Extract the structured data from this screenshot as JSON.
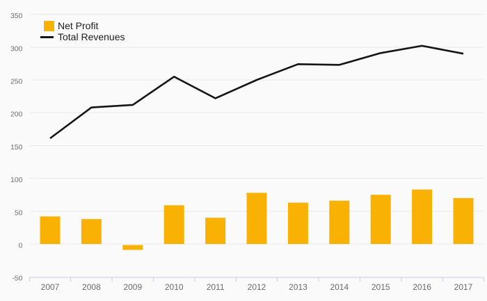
{
  "chart": {
    "background": "#FAFAFA",
    "legend": {
      "items": [
        {
          "label": "Net Profit",
          "symbol": "square",
          "color": "#F9B104"
        },
        {
          "label": "Total Revenues",
          "symbol": "line",
          "color": "#141414"
        }
      ]
    }
  },
  "chart_data": {
    "type": "combo",
    "title": "",
    "categories": [
      "2007",
      "2008",
      "2009",
      "2010",
      "2011",
      "2012",
      "2013",
      "2014",
      "2015",
      "2016",
      "2017"
    ],
    "series": [
      {
        "name": "Net Profit",
        "type": "bar",
        "color": "#F9B104",
        "values": [
          42,
          38,
          -9,
          59,
          40,
          78,
          63,
          66,
          75,
          83,
          70
        ]
      },
      {
        "name": "Total Revenues",
        "type": "line",
        "color": "#141414",
        "values": [
          161,
          208,
          212,
          255,
          222,
          250,
          274,
          273,
          291,
          302,
          290
        ]
      }
    ],
    "xlabel": "",
    "ylabel": "",
    "ylim": [
      -50,
      350
    ],
    "ytick_step": 50,
    "yticks": [
      350,
      300,
      250,
      200,
      150,
      100,
      50,
      0,
      -50
    ],
    "grid": true,
    "legend_position": "top-left",
    "grid_color": "#E8E8E8",
    "axis_color": "#C6CCE3",
    "y_tick_label_color": "#6E6E6E",
    "x_tick_label_color": "#6A6A6A"
  }
}
